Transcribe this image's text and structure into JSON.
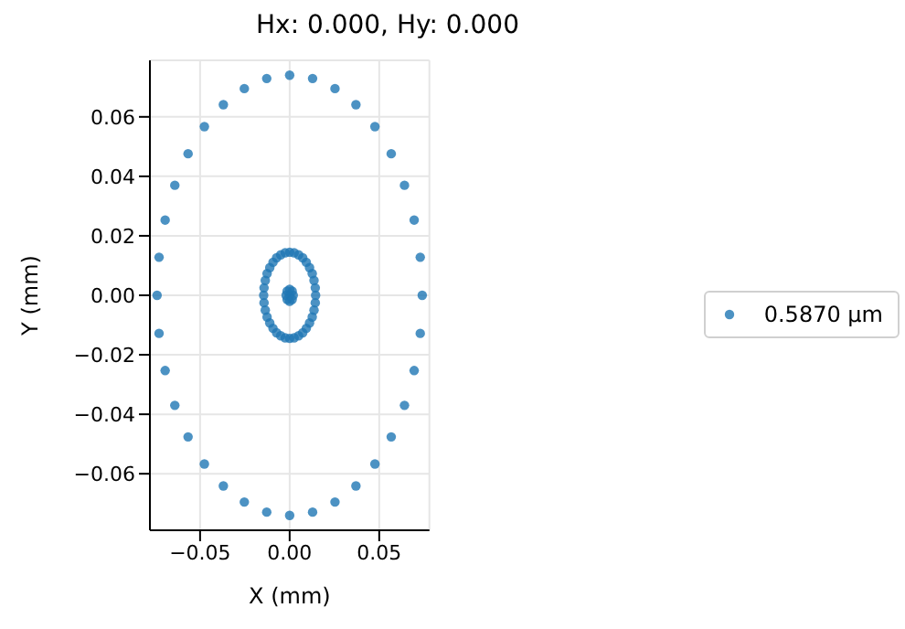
{
  "chart_data": {
    "type": "scatter",
    "title": "Hx: 0.000, Hy: 0.000",
    "xlabel": "X (mm)",
    "ylabel": "Y (mm)",
    "xlim": [
      -0.078,
      0.078
    ],
    "ylim": [
      -0.079,
      0.079
    ],
    "xticks": [
      {
        "value": -0.05,
        "label": "−0.05"
      },
      {
        "value": 0,
        "label": "0.00"
      },
      {
        "value": 0.05,
        "label": "0.05"
      }
    ],
    "yticks": [
      {
        "value": -0.06,
        "label": "−0.06"
      },
      {
        "value": -0.04,
        "label": "−0.04"
      },
      {
        "value": -0.02,
        "label": "−0.02"
      },
      {
        "value": 0,
        "label": "0.00"
      },
      {
        "value": 0.02,
        "label": "0.02"
      },
      {
        "value": 0.04,
        "label": "0.04"
      },
      {
        "value": 0.06,
        "label": "0.06"
      }
    ],
    "grid": true,
    "legend": "right",
    "marker": "circle",
    "series": [
      {
        "name": "0.5870 µm",
        "color": "#1f77b4",
        "x": [
          0.074,
          0.0729,
          0.0695,
          0.0641,
          0.0567,
          0.0476,
          0.037,
          0.0253,
          0.0128,
          0,
          -0.0128,
          -0.0253,
          -0.037,
          -0.0476,
          -0.0567,
          -0.0641,
          -0.0695,
          -0.0729,
          -0.074,
          -0.0729,
          -0.0695,
          -0.0641,
          -0.0567,
          -0.0476,
          -0.037,
          -0.0253,
          -0.0128,
          0,
          0.0128,
          0.0253,
          0.037,
          0.0476,
          0.0567,
          0.0641,
          0.0695,
          0.0729,
          0.0145,
          0.0143,
          0.0136,
          0.0126,
          0.0111,
          0.0093,
          0.0073,
          0.005,
          0.0025,
          0,
          -0.0025,
          -0.005,
          -0.0073,
          -0.0093,
          -0.0111,
          -0.0126,
          -0.0136,
          -0.0143,
          -0.0145,
          -0.0143,
          -0.0136,
          -0.0126,
          -0.0111,
          -0.0093,
          -0.0073,
          -0.005,
          -0.0025,
          0,
          0.0025,
          0.005,
          0.0073,
          0.0093,
          0.0111,
          0.0126,
          0.0136,
          0.0143,
          0,
          0.002,
          0.0014,
          0,
          -0.0014,
          -0.002,
          -0.0014,
          0,
          0.0014
        ],
        "values": [
          0,
          0.0128,
          0.0253,
          0.037,
          0.0476,
          0.0567,
          0.0641,
          0.0695,
          0.0729,
          0.074,
          0.0729,
          0.0695,
          0.0641,
          0.0567,
          0.0476,
          0.037,
          0.0253,
          0.0128,
          0,
          -0.0128,
          -0.0253,
          -0.037,
          -0.0476,
          -0.0567,
          -0.0641,
          -0.0695,
          -0.0729,
          -0.074,
          -0.0729,
          -0.0695,
          -0.0641,
          -0.0567,
          -0.0476,
          -0.037,
          -0.0253,
          -0.0128,
          0,
          0.0025,
          0.005,
          0.0073,
          0.0093,
          0.0111,
          0.0126,
          0.0136,
          0.0143,
          0.0145,
          0.0143,
          0.0136,
          0.0126,
          0.0111,
          0.0093,
          0.0073,
          0.005,
          0.0025,
          0,
          -0.0025,
          -0.005,
          -0.0073,
          -0.0093,
          -0.0111,
          -0.0126,
          -0.0136,
          -0.0143,
          -0.0145,
          -0.0143,
          -0.0136,
          -0.0126,
          -0.0111,
          -0.0093,
          -0.0073,
          -0.005,
          -0.0025,
          0,
          0,
          0.0014,
          0.002,
          0.0014,
          0,
          -0.0014,
          -0.002,
          -0.0014
        ]
      }
    ]
  }
}
